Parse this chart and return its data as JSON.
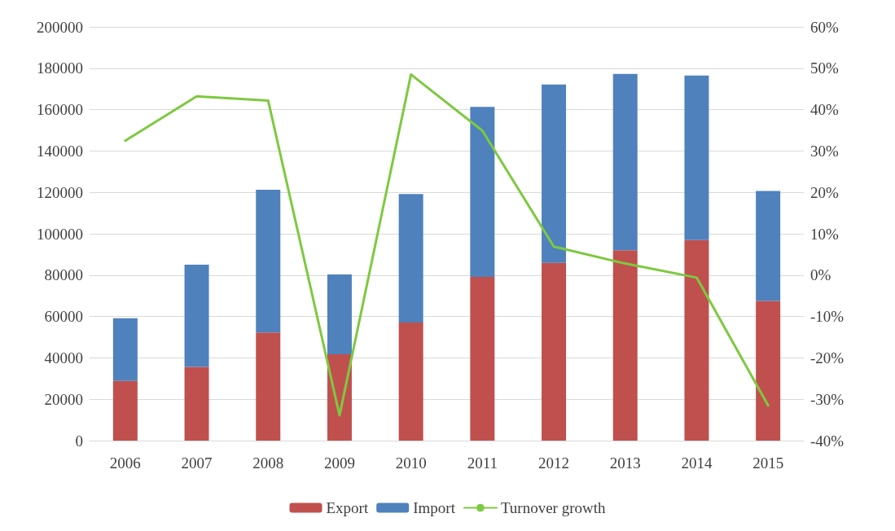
{
  "chart_data": {
    "type": "bar",
    "stacked": true,
    "legend": "bottom",
    "grid": "y",
    "categories": [
      "2006",
      "2007",
      "2008",
      "2009",
      "2010",
      "2011",
      "2012",
      "2013",
      "2014",
      "2015"
    ],
    "series": [
      {
        "name": "Export",
        "color": "#c0504d",
        "values": [
          28800,
          35600,
          52300,
          41700,
          57100,
          79100,
          85900,
          92000,
          96900,
          67500
        ]
      },
      {
        "name": "Import",
        "color": "#4f81bd",
        "values": [
          30400,
          49400,
          69000,
          38600,
          62100,
          82200,
          86200,
          85300,
          79600,
          53200
        ]
      },
      {
        "name": "Turnover growth",
        "type": "line",
        "axis": "y2",
        "color": "#7dc940",
        "marker": "none",
        "values": [
          32.5,
          43.2,
          42.2,
          -33.9,
          48.5,
          34.9,
          6.9,
          2.8,
          -0.6,
          -31.5
        ]
      }
    ],
    "ylim": [
      0,
      200000
    ],
    "yticks": [
      0,
      20000,
      40000,
      60000,
      80000,
      100000,
      120000,
      140000,
      160000,
      180000,
      200000
    ],
    "y2lim": [
      -40,
      60
    ],
    "y2ticks": [
      {
        "value": -40,
        "label": "-40%"
      },
      {
        "value": -30,
        "label": "-30%"
      },
      {
        "value": -20,
        "label": "-20%"
      },
      {
        "value": -10,
        "label": "-10%"
      },
      {
        "value": 0,
        "label": "0%"
      },
      {
        "value": 10,
        "label": "10%"
      },
      {
        "value": 20,
        "label": "20%"
      },
      {
        "value": 30,
        "label": "30%"
      },
      {
        "value": 40,
        "label": "40%"
      },
      {
        "value": 50,
        "label": "50%"
      },
      {
        "value": 60,
        "label": "60%"
      }
    ]
  }
}
